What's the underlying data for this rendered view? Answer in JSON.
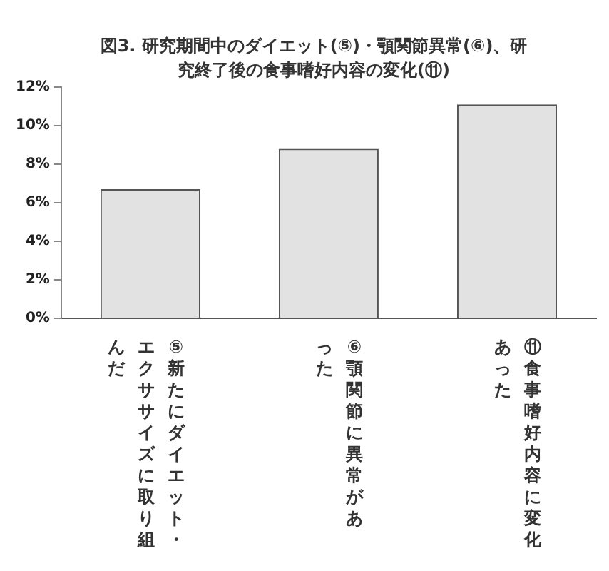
{
  "chart_data": {
    "type": "bar",
    "title": "図3. 研究期間中のダイエット(⑤)・顎関節異常(⑥)、研究終了後の食事嗜好内容の変化(⑪)",
    "categories": [
      "⑤新たにダイエット・エクササイズに取り組んだ",
      "⑥顎関節に異常があった",
      "⑪食事嗜好内容に変化あった"
    ],
    "values": [
      6.7,
      8.8,
      11.1
    ],
    "color": "#e2e2e2",
    "ylim": [
      0,
      12
    ],
    "yticks": [
      {
        "value": 0,
        "label": "0%"
      },
      {
        "value": 2,
        "label": "2%"
      },
      {
        "value": 4,
        "label": "4%"
      },
      {
        "value": 6,
        "label": "6%"
      },
      {
        "value": 8,
        "label": "8%"
      },
      {
        "value": 10,
        "label": "10%"
      },
      {
        "value": 12,
        "label": "12%"
      }
    ],
    "grid": false
  }
}
